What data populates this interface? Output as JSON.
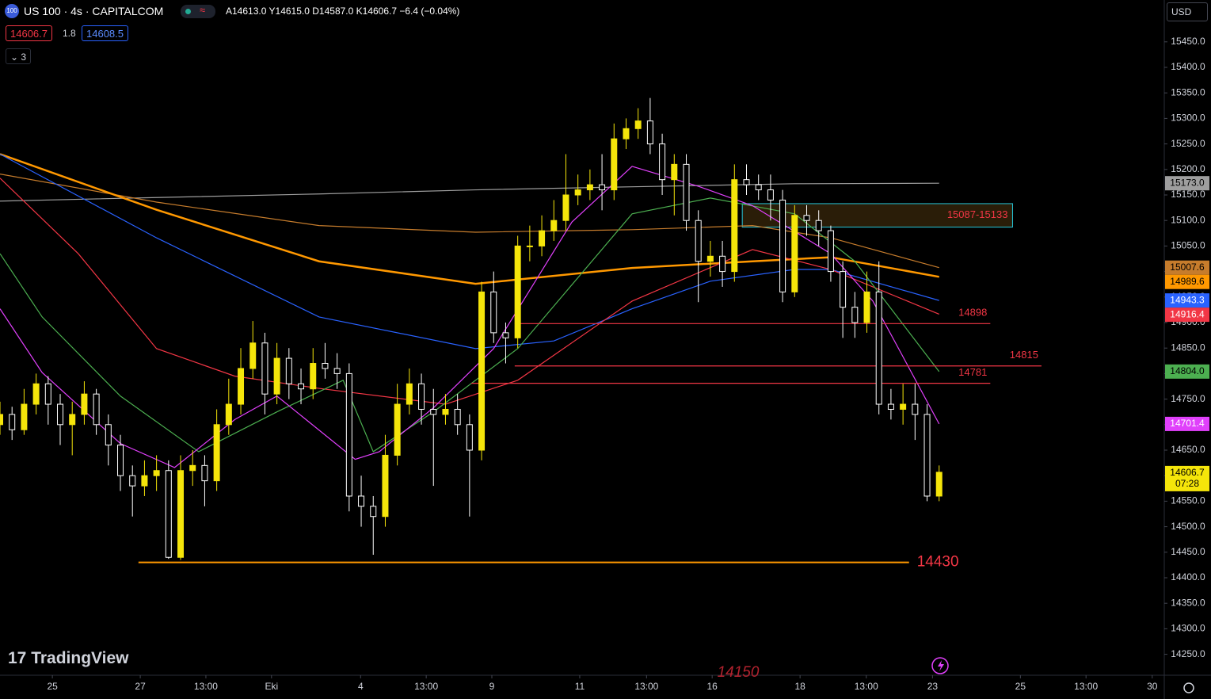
{
  "header": {
    "icon": "100",
    "symbol": "US 100 · 4s · CAPITALCOM",
    "ohlc": [
      "A14613.0",
      "Y14615.0",
      "D14587.0",
      "K14606.7",
      "−6.4 (−0.04%)"
    ],
    "sell": "14606.7",
    "spread": "1.8",
    "buy": "14608.5",
    "indicators": "3",
    "currency": "USD"
  },
  "footer": {
    "logo": "TradingView"
  },
  "chart_data": {
    "type": "candlestick",
    "ylim": [
      14209,
      15532
    ],
    "yticks": [
      {
        "value": 14250,
        "label": "14250.0"
      },
      {
        "value": 14300,
        "label": "14300.0"
      },
      {
        "value": 14350,
        "label": "14350.0"
      },
      {
        "value": 14400,
        "label": "14400.0"
      },
      {
        "value": 14450,
        "label": "14450.0"
      },
      {
        "value": 14500,
        "label": "14500.0"
      },
      {
        "value": 14550,
        "label": "14550.0"
      },
      {
        "value": 14600,
        "label": "14600.0"
      },
      {
        "value": 14650,
        "label": "14650.0"
      },
      {
        "value": 14700,
        "label": "14700.0"
      },
      {
        "value": 14750,
        "label": "14750.0"
      },
      {
        "value": 14800,
        "label": "14800.0"
      },
      {
        "value": 14850,
        "label": "14850.0"
      },
      {
        "value": 14900,
        "label": "14900.0"
      },
      {
        "value": 14950,
        "label": "14950.0"
      },
      {
        "value": 15000,
        "label": "15000.0"
      },
      {
        "value": 15050,
        "label": "15050.0"
      },
      {
        "value": 15100,
        "label": "15100.0"
      },
      {
        "value": 15150,
        "label": "15150.0"
      },
      {
        "value": 15200,
        "label": "15200.0"
      },
      {
        "value": 15250,
        "label": "15250.0"
      },
      {
        "value": 15300,
        "label": "15300.0"
      },
      {
        "value": 15350,
        "label": "15350.0"
      },
      {
        "value": 15400,
        "label": "15400.0"
      },
      {
        "value": 15450,
        "label": "15450.0"
      }
    ],
    "xlim": [
      0,
      193.4
    ],
    "xticks": [
      {
        "value": 8.7,
        "label": "25"
      },
      {
        "value": 23.3,
        "label": "27"
      },
      {
        "value": 34.2,
        "label": "13:00"
      },
      {
        "value": 45.1,
        "label": "Eki"
      },
      {
        "value": 59.9,
        "label": "4"
      },
      {
        "value": 70.8,
        "label": "13:00"
      },
      {
        "value": 81.7,
        "label": "9"
      },
      {
        "value": 96.3,
        "label": "11"
      },
      {
        "value": 107.4,
        "label": "13:00"
      },
      {
        "value": 118.3,
        "label": "16"
      },
      {
        "value": 132.9,
        "label": "18"
      },
      {
        "value": 143.9,
        "label": "13:00"
      },
      {
        "value": 154.9,
        "label": "23"
      },
      {
        "value": 169.5,
        "label": "25"
      },
      {
        "value": 180.4,
        "label": "13:00"
      },
      {
        "value": 191.4,
        "label": "30"
      }
    ],
    "candles": {
      "up_color": "#f5e50a",
      "down_color": "#ffffff",
      "x": [
        0,
        2,
        4,
        6,
        8,
        10,
        12,
        14,
        16,
        18,
        20,
        22,
        24,
        26,
        28,
        30,
        32,
        34,
        36,
        38,
        40,
        42,
        44,
        46,
        48,
        50,
        52,
        54,
        56,
        58,
        60,
        62,
        64,
        66,
        68,
        70,
        72,
        74,
        76,
        78,
        80,
        82,
        84,
        86,
        88,
        90,
        92,
        94,
        96,
        98,
        100,
        102,
        104,
        106,
        108,
        110,
        112,
        114,
        116,
        118,
        120,
        122,
        124,
        126,
        128,
        130,
        132,
        134,
        136,
        138,
        140,
        142,
        144,
        146,
        148,
        150,
        152,
        154,
        156
      ],
      "values": [
        [
          14700,
          14745,
          14680,
          14720
        ],
        [
          14720,
          14735,
          14670,
          14690
        ],
        [
          14690,
          14770,
          14680,
          14740
        ],
        [
          14740,
          14800,
          14720,
          14780
        ],
        [
          14780,
          14795,
          14700,
          14740
        ],
        [
          14740,
          14760,
          14660,
          14700
        ],
        [
          14700,
          14745,
          14640,
          14720
        ],
        [
          14720,
          14785,
          14700,
          14760
        ],
        [
          14760,
          14770,
          14680,
          14700
        ],
        [
          14700,
          14720,
          14620,
          14660
        ],
        [
          14660,
          14680,
          14570,
          14600
        ],
        [
          14600,
          14620,
          14520,
          14580
        ],
        [
          14580,
          14630,
          14560,
          14600
        ],
        [
          14600,
          14640,
          14570,
          14610
        ],
        [
          14610,
          14630,
          14437,
          14440
        ],
        [
          14440,
          14640,
          14435,
          14610
        ],
        [
          14610,
          14650,
          14580,
          14620
        ],
        [
          14620,
          14640,
          14540,
          14590
        ],
        [
          14590,
          14730,
          14570,
          14700
        ],
        [
          14700,
          14790,
          14680,
          14740
        ],
        [
          14740,
          14850,
          14720,
          14810
        ],
        [
          14810,
          14903,
          14790,
          14860
        ],
        [
          14860,
          14880,
          14720,
          14760
        ],
        [
          14760,
          14860,
          14740,
          14830
        ],
        [
          14830,
          14850,
          14750,
          14780
        ],
        [
          14780,
          14810,
          14740,
          14770
        ],
        [
          14770,
          14850,
          14750,
          14820
        ],
        [
          14820,
          14860,
          14790,
          14810
        ],
        [
          14810,
          14840,
          14770,
          14800
        ],
        [
          14800,
          14820,
          14530,
          14560
        ],
        [
          14560,
          14600,
          14500,
          14540
        ],
        [
          14540,
          14560,
          14445,
          14520
        ],
        [
          14520,
          14680,
          14500,
          14640
        ],
        [
          14640,
          14780,
          14620,
          14740
        ],
        [
          14740,
          14810,
          14720,
          14780
        ],
        [
          14780,
          14800,
          14700,
          14730
        ],
        [
          14730,
          14770,
          14580,
          14720
        ],
        [
          14720,
          14760,
          14700,
          14730
        ],
        [
          14730,
          14760,
          14680,
          14700
        ],
        [
          14700,
          14720,
          14520,
          14650
        ],
        [
          14650,
          14980,
          14630,
          14960
        ],
        [
          14960,
          15000,
          14860,
          14880
        ],
        [
          14880,
          14900,
          14820,
          14870
        ],
        [
          14870,
          15070,
          14850,
          15050
        ],
        [
          15050,
          15090,
          15020,
          15050
        ],
        [
          15050,
          15110,
          15030,
          15080
        ],
        [
          15080,
          15140,
          15060,
          15100
        ],
        [
          15100,
          15230,
          15080,
          15150
        ],
        [
          15150,
          15190,
          15130,
          15160
        ],
        [
          15160,
          15200,
          15140,
          15170
        ],
        [
          15170,
          15230,
          15120,
          15160
        ],
        [
          15160,
          15290,
          15140,
          15260
        ],
        [
          15260,
          15300,
          15240,
          15280
        ],
        [
          15280,
          15320,
          15260,
          15295
        ],
        [
          15295,
          15340,
          15230,
          15250
        ],
        [
          15250,
          15270,
          15150,
          15180
        ],
        [
          15180,
          15230,
          15110,
          15210
        ],
        [
          15210,
          15230,
          15080,
          15100
        ],
        [
          15100,
          15120,
          14940,
          15020
        ],
        [
          15020,
          15060,
          14990,
          15030
        ],
        [
          15030,
          15060,
          14970,
          15000
        ],
        [
          15000,
          15210,
          14980,
          15180
        ],
        [
          15180,
          15210,
          15150,
          15170
        ],
        [
          15170,
          15190,
          15140,
          15160
        ],
        [
          15160,
          15190,
          15100,
          15140
        ],
        [
          15140,
          15160,
          14940,
          14960
        ],
        [
          14960,
          15130,
          14950,
          15110
        ],
        [
          15110,
          15130,
          15070,
          15100
        ],
        [
          15100,
          15120,
          15050,
          15080
        ],
        [
          15080,
          15090,
          14980,
          15000
        ],
        [
          15000,
          15020,
          14870,
          14930
        ],
        [
          14930,
          14960,
          14870,
          14900
        ],
        [
          14900,
          15000,
          14880,
          14960
        ],
        [
          14960,
          15020,
          14720,
          14740
        ],
        [
          14740,
          14770,
          14710,
          14730
        ],
        [
          14730,
          14780,
          14700,
          14740
        ],
        [
          14740,
          14780,
          14670,
          14720
        ],
        [
          14720,
          14740,
          14550,
          14560
        ],
        [
          14560,
          14620,
          14550,
          14606.7
        ]
      ],
      "countdown": "07:28"
    },
    "lines": [
      {
        "color": "#9e9e9e",
        "text_color": "#000000",
        "width": 1.2,
        "x": [
          0,
          26,
          53,
          79,
          105,
          132,
          156
        ],
        "values": [
          15138,
          15145,
          15152,
          15160,
          15166,
          15172,
          15173
        ],
        "last_label": "15173.0"
      },
      {
        "color": "#c67c2c",
        "text_color": "#000000",
        "width": 1.2,
        "x": [
          0,
          26,
          53,
          79,
          105,
          125,
          138,
          156
        ],
        "values": [
          15191,
          15136,
          15090,
          15077,
          15082,
          15090,
          15066,
          15007.6
        ],
        "last_label": "15007.6"
      },
      {
        "color": "#ff9800",
        "text_color": "#000000",
        "width": 2.5,
        "x": [
          0,
          26,
          53,
          79,
          105,
          125,
          138,
          156
        ],
        "values": [
          15230,
          15121,
          15020,
          14976,
          15007,
          15020,
          15028,
          14989.6
        ],
        "last_label": "14989.6"
      },
      {
        "color": "#2962ff",
        "text_color": "#ffffff",
        "width": 1.2,
        "x": [
          0,
          26,
          53,
          79,
          92,
          105,
          118,
          132,
          138,
          156
        ],
        "values": [
          15230,
          15066,
          14911,
          14849,
          14864,
          14927,
          14981,
          15004,
          15004,
          14943.3
        ],
        "last_label": "14943.3"
      },
      {
        "color": "#f23645",
        "text_color": "#ffffff",
        "width": 1.2,
        "x": [
          0,
          13,
          26,
          39,
          53,
          74,
          86,
          105,
          125,
          138,
          156
        ],
        "values": [
          15183,
          15035,
          14849,
          14795,
          14771,
          14740,
          14787,
          14942,
          15043,
          15004,
          14916.4
        ],
        "last_label": "14916.4"
      },
      {
        "color": "#4caf50",
        "text_color": "#000000",
        "width": 1.2,
        "x": [
          0,
          7,
          20,
          33,
          46,
          57,
          62,
          72,
          86,
          105,
          118,
          132,
          142,
          156
        ],
        "values": [
          15035,
          14911,
          14756,
          14647,
          14725,
          14787,
          14647,
          14725,
          14849,
          15113,
          15144,
          15113,
          15020,
          14804
        ],
        "last_label": "14804.0"
      },
      {
        "color": "#e040fb",
        "text_color": "#ffffff",
        "width": 1.2,
        "x": [
          0,
          7,
          20,
          29,
          39,
          46,
          59,
          63,
          72,
          82,
          95,
          105,
          116,
          125,
          138,
          145,
          150,
          156
        ],
        "values": [
          14927,
          14802,
          14663,
          14616,
          14710,
          14756,
          14632,
          14647,
          14733,
          14849,
          15097,
          15206,
          15167,
          15129,
          15035,
          14942,
          14833,
          14701.4
        ],
        "last_label": "14701.4"
      }
    ],
    "levels": [
      {
        "value": 14898,
        "color": "#f23645",
        "x": [
          85.5,
          164.5
        ]
      },
      {
        "value": 14815,
        "color": "#f23645",
        "x": [
          85.5,
          173
        ]
      },
      {
        "value": 14781,
        "color": "#f23645",
        "x": [
          78.3,
          164.5
        ]
      },
      {
        "value": 14430,
        "color": "#ff9800",
        "x": [
          23,
          151
        ]
      }
    ],
    "zone": {
      "low": 15087,
      "high": 15133,
      "x": [
        123.3,
        168.2
      ],
      "label": "15087-15133"
    },
    "annotations": [
      {
        "text": "14150"
      }
    ]
  }
}
